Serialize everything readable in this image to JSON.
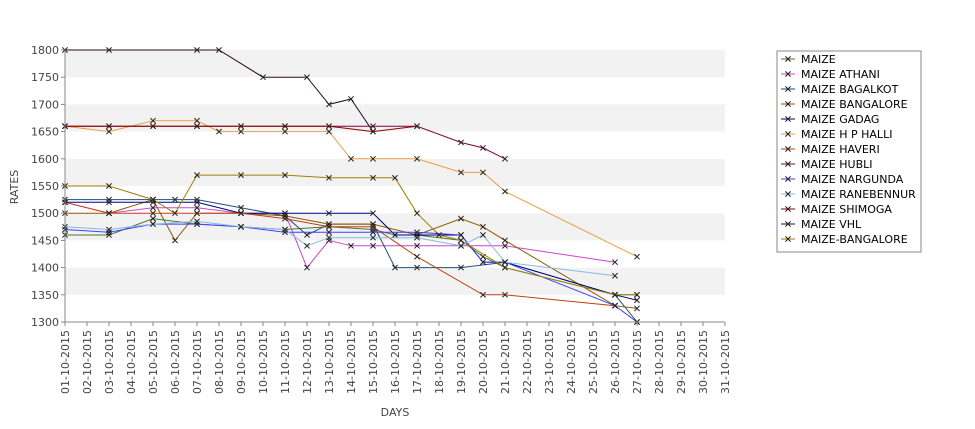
{
  "chart_data": {
    "type": "line",
    "xlabel": "DAYS",
    "ylabel": "RATES",
    "ylim": [
      1300,
      1800
    ],
    "yticks": [
      1300,
      1350,
      1400,
      1450,
      1500,
      1550,
      1600,
      1650,
      1700,
      1750,
      1800
    ],
    "grid": "horizontal bands",
    "legend_position": "right",
    "categories": [
      "01-10-2015",
      "02-10-2015",
      "03-10-2015",
      "04-10-2015",
      "05-10-2015",
      "06-10-2015",
      "07-10-2015",
      "08-10-2015",
      "09-10-2015",
      "10-10-2015",
      "11-10-2015",
      "12-10-2015",
      "13-10-2015",
      "14-10-2015",
      "15-10-2015",
      "16-10-2015",
      "17-10-2015",
      "18-10-2015",
      "19-10-2015",
      "20-10-2015",
      "21-10-2015",
      "22-10-2015",
      "23-10-2015",
      "24-10-2015",
      "25-10-2015",
      "26-10-2015",
      "27-10-2015",
      "28-10-2015",
      "29-10-2015",
      "30-10-2015",
      "31-10-2015"
    ],
    "series": [
      {
        "name": "MAIZE",
        "color": "#4a7a2a",
        "points": [
          [
            0,
            1460
          ],
          [
            2,
            1460
          ],
          [
            4,
            1490
          ],
          [
            6,
            1480
          ],
          [
            8,
            1475
          ],
          [
            10,
            1470
          ],
          [
            12,
            1475
          ],
          [
            14,
            1470
          ],
          [
            15,
            1460
          ],
          [
            16,
            1460
          ],
          [
            18,
            1450
          ],
          [
            19,
            1420
          ],
          [
            20,
            1400
          ],
          [
            25,
            1350
          ],
          [
            26,
            1350
          ]
        ]
      },
      {
        "name": "MAIZE ATHANI",
        "color": "#cc44cc",
        "points": [
          [
            0,
            1520
          ],
          [
            2,
            1500
          ],
          [
            4,
            1510
          ],
          [
            6,
            1510
          ],
          [
            8,
            1500
          ],
          [
            10,
            1500
          ],
          [
            11,
            1400
          ],
          [
            12,
            1450
          ],
          [
            13,
            1440
          ],
          [
            14,
            1440
          ],
          [
            16,
            1440
          ],
          [
            18,
            1440
          ],
          [
            20,
            1440
          ],
          [
            25,
            1410
          ]
        ]
      },
      {
        "name": "MAIZE BAGALKOT",
        "color": "#1f4e79",
        "points": [
          [
            0,
            1525
          ],
          [
            2,
            1525
          ],
          [
            4,
            1525
          ],
          [
            5,
            1525
          ],
          [
            6,
            1525
          ],
          [
            8,
            1510
          ],
          [
            10,
            1495
          ],
          [
            11,
            1460
          ],
          [
            12,
            1480
          ],
          [
            14,
            1480
          ],
          [
            15,
            1400
          ],
          [
            16,
            1400
          ],
          [
            18,
            1400
          ],
          [
            20,
            1410
          ],
          [
            25,
            1350
          ],
          [
            26,
            1300
          ]
        ]
      },
      {
        "name": "MAIZE BANGALORE",
        "color": "#8b5a00",
        "points": [
          [
            0,
            1500
          ],
          [
            2,
            1500
          ],
          [
            4,
            1525
          ],
          [
            5,
            1450
          ],
          [
            6,
            1500
          ],
          [
            8,
            1500
          ],
          [
            10,
            1495
          ],
          [
            12,
            1480
          ],
          [
            14,
            1480
          ],
          [
            16,
            1460
          ],
          [
            18,
            1490
          ],
          [
            19,
            1475
          ],
          [
            20,
            1450
          ],
          [
            25,
            1330
          ],
          [
            26,
            1325
          ]
        ]
      },
      {
        "name": "MAIZE GADAG",
        "color": "#000080",
        "points": [
          [
            0,
            1520
          ],
          [
            2,
            1520
          ],
          [
            4,
            1520
          ],
          [
            6,
            1520
          ],
          [
            8,
            1500
          ],
          [
            10,
            1500
          ],
          [
            12,
            1500
          ],
          [
            14,
            1500
          ],
          [
            15,
            1460
          ],
          [
            16,
            1460
          ],
          [
            18,
            1460
          ],
          [
            19,
            1410
          ],
          [
            20,
            1410
          ],
          [
            25,
            1350
          ],
          [
            26,
            1340
          ]
        ]
      },
      {
        "name": "MAIZE H P HALLI",
        "color": "#e8a040",
        "points": [
          [
            0,
            1660
          ],
          [
            2,
            1650
          ],
          [
            4,
            1670
          ],
          [
            6,
            1670
          ],
          [
            7,
            1650
          ],
          [
            8,
            1650
          ],
          [
            10,
            1650
          ],
          [
            12,
            1650
          ],
          [
            13,
            1600
          ],
          [
            14,
            1600
          ],
          [
            16,
            1600
          ],
          [
            18,
            1575
          ],
          [
            19,
            1575
          ],
          [
            20,
            1540
          ],
          [
            26,
            1420
          ]
        ]
      },
      {
        "name": "MAIZE HAVERI",
        "color": "#c04010",
        "points": [
          [
            0,
            1520
          ],
          [
            2,
            1500
          ],
          [
            4,
            1500
          ],
          [
            6,
            1500
          ],
          [
            8,
            1500
          ],
          [
            10,
            1490
          ],
          [
            12,
            1475
          ],
          [
            14,
            1475
          ],
          [
            16,
            1420
          ],
          [
            19,
            1350
          ],
          [
            20,
            1350
          ],
          [
            25,
            1330
          ]
        ]
      },
      {
        "name": "MAIZE HUBLI",
        "color": "#800040",
        "points": [
          [
            0,
            1660
          ],
          [
            2,
            1660
          ],
          [
            4,
            1660
          ],
          [
            6,
            1660
          ],
          [
            8,
            1660
          ],
          [
            10,
            1660
          ],
          [
            12,
            1660
          ],
          [
            14,
            1660
          ],
          [
            16,
            1660
          ],
          [
            18,
            1630
          ],
          [
            19,
            1620
          ],
          [
            20,
            1600
          ]
        ]
      },
      {
        "name": "MAIZE NARGUNDA",
        "color": "#4040ff",
        "points": [
          [
            0,
            1470
          ],
          [
            2,
            1465
          ],
          [
            4,
            1480
          ],
          [
            6,
            1480
          ],
          [
            8,
            1475
          ],
          [
            10,
            1465
          ],
          [
            12,
            1465
          ],
          [
            14,
            1465
          ],
          [
            16,
            1465
          ],
          [
            18,
            1460
          ],
          [
            19,
            1410
          ],
          [
            20,
            1410
          ],
          [
            25,
            1330
          ],
          [
            26,
            1300
          ]
        ]
      },
      {
        "name": "MAIZE RANEBENNUR",
        "color": "#88bbdd",
        "points": [
          [
            0,
            1475
          ],
          [
            2,
            1470
          ],
          [
            4,
            1480
          ],
          [
            6,
            1485
          ],
          [
            8,
            1475
          ],
          [
            10,
            1470
          ],
          [
            11,
            1440
          ],
          [
            12,
            1455
          ],
          [
            14,
            1455
          ],
          [
            16,
            1455
          ],
          [
            18,
            1440
          ],
          [
            19,
            1460
          ],
          [
            20,
            1410
          ],
          [
            25,
            1385
          ]
        ]
      },
      {
        "name": "MAIZE SHIMOGA",
        "color": "#8b0000",
        "points": [
          [
            0,
            1660
          ],
          [
            2,
            1660
          ],
          [
            4,
            1660
          ],
          [
            6,
            1660
          ],
          [
            8,
            1660
          ],
          [
            10,
            1660
          ],
          [
            12,
            1660
          ],
          [
            14,
            1650
          ],
          [
            16,
            1660
          ]
        ]
      },
      {
        "name": "MAIZE VHL",
        "color": "#2a0a2a",
        "points": [
          [
            0,
            1800
          ],
          [
            2,
            1800
          ],
          [
            6,
            1800
          ],
          [
            7,
            1800
          ],
          [
            9,
            1750
          ],
          [
            11,
            1750
          ],
          [
            12,
            1700
          ],
          [
            13,
            1710
          ],
          [
            14,
            1650
          ]
        ]
      },
      {
        "name": "MAIZE-BANGALORE",
        "color": "#a08000",
        "points": [
          [
            0,
            1550
          ],
          [
            2,
            1550
          ],
          [
            4,
            1525
          ],
          [
            5,
            1500
          ],
          [
            6,
            1570
          ],
          [
            8,
            1570
          ],
          [
            10,
            1570
          ],
          [
            12,
            1565
          ],
          [
            14,
            1565
          ],
          [
            15,
            1565
          ],
          [
            16,
            1500
          ],
          [
            17,
            1460
          ],
          [
            18,
            1450
          ],
          [
            20,
            1400
          ],
          [
            25,
            1350
          ],
          [
            26,
            1350
          ]
        ]
      }
    ]
  }
}
